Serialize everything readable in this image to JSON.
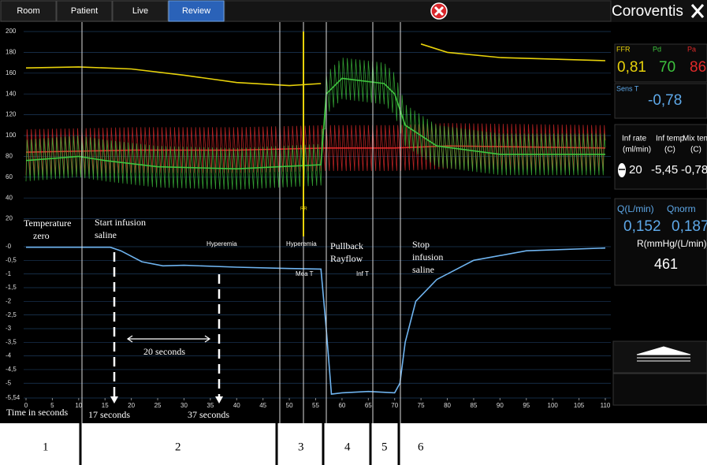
{
  "top_bar": {
    "tabs": [
      "Room",
      "Patient",
      "Live",
      "Review"
    ],
    "brand": "Coroventis"
  },
  "annotations": {
    "temperature_zero": [
      "Temperature",
      "zero"
    ],
    "start_infusion": [
      "Start infusion",
      "saline"
    ],
    "hyperemia_1": "Hyperemia",
    "hyperemia_2": "Hyperemia",
    "pullback": [
      "Pullback",
      "Rayflow"
    ],
    "stop_infusion": [
      "Stop",
      "infusion",
      "saline"
    ],
    "mea_t": "Mea T",
    "inf_t": "Inf T",
    "rr": "RR",
    "twenty_seconds": "20 seconds",
    "time_in_seconds": "Time in seconds",
    "seventeen_seconds": "17 seconds",
    "thirtyseven_seconds": "37 seconds"
  },
  "side_panel": {
    "ffr_label": "FFR",
    "pd_label": "Pd",
    "pa_label": "Pa",
    "ffr": "0,81",
    "pd": "70",
    "pa": "86",
    "sens_label": "Sens T",
    "sens": "-0,78",
    "inf_rate_label": [
      "Inf rate",
      "(ml/min)"
    ],
    "inf_temp_label": [
      "Inf temp",
      "(C)"
    ],
    "mix_temp_label": [
      "Mix temp",
      "(C)"
    ],
    "inf_rate": "20",
    "inf_temp": "-5,45",
    "mix_temp": "-0,78",
    "q_label": "Q(L/min)",
    "qnorm_label": "Qnorm",
    "q": "0,152",
    "qnorm": "0,187",
    "r_label": "R(mmHg/(L/min))",
    "r": "461"
  },
  "phases": [
    "1",
    "2",
    "3",
    "4",
    "5",
    "6"
  ],
  "chart_data": [
    {
      "type": "line",
      "xlim": [
        0,
        110
      ],
      "ylim": [
        0,
        200
      ],
      "yticks": [
        20,
        40,
        60,
        80,
        100,
        120,
        140,
        160,
        180,
        200
      ],
      "grid": true,
      "series": [
        {
          "color": "#e8d20a",
          "x": [
            0,
            10,
            20,
            30,
            40,
            50,
            56,
            57,
            75,
            80,
            90,
            110
          ],
          "values": [
            165,
            166,
            164,
            158,
            151,
            148,
            150,
            null,
            188,
            180,
            175,
            172
          ]
        },
        {
          "color": "#e02a2a",
          "swing": 22,
          "beat": 0.8,
          "x": [
            0,
            20,
            40,
            57,
            70,
            80,
            110
          ],
          "values": [
            84,
            86,
            86,
            88,
            88,
            90,
            88
          ]
        },
        {
          "color": "#3ec43e",
          "swing": 20,
          "beat": 0.8,
          "x": [
            0,
            10,
            15,
            25,
            40,
            56,
            57,
            60,
            68,
            70,
            72,
            78,
            90,
            110
          ],
          "values": [
            76,
            80,
            76,
            70,
            68,
            72,
            140,
            155,
            150,
            140,
            110,
            90,
            82,
            82
          ]
        }
      ]
    },
    {
      "type": "line",
      "xlim": [
        0,
        110
      ],
      "ylim": [
        -5.54,
        0
      ],
      "xticks": [
        0,
        5,
        10,
        15,
        20,
        25,
        30,
        35,
        40,
        45,
        50,
        55,
        60,
        65,
        70,
        75,
        80,
        85,
        90,
        95,
        100,
        105,
        110
      ],
      "yticks": [
        {
          "value": 0,
          "label": "-0"
        },
        {
          "value": -0.5,
          "label": "-0,5"
        },
        -1,
        {
          "value": -1.5,
          "label": "-1,5"
        },
        -2,
        {
          "value": -2.5,
          "label": "-2,5"
        },
        -3,
        {
          "value": -3.5,
          "label": "-3,5"
        },
        -4,
        {
          "value": -4.5,
          "label": "-4,5"
        },
        -5,
        {
          "value": -5.54,
          "label": "-5,54"
        }
      ],
      "grid": true,
      "series": [
        {
          "color": "#6fb4f0",
          "x": [
            0,
            16,
            18,
            22,
            26,
            30,
            40,
            50,
            56,
            57,
            58,
            60,
            65,
            70,
            71,
            72,
            74,
            78,
            85,
            95,
            110
          ],
          "values": [
            -0.02,
            -0.02,
            -0.15,
            -0.55,
            -0.7,
            -0.68,
            -0.75,
            -0.8,
            -0.82,
            -3,
            -5.4,
            -5.35,
            -5.3,
            -5.35,
            -5,
            -3.5,
            -2,
            -1.2,
            -0.5,
            -0.15,
            -0.05
          ]
        }
      ]
    }
  ]
}
